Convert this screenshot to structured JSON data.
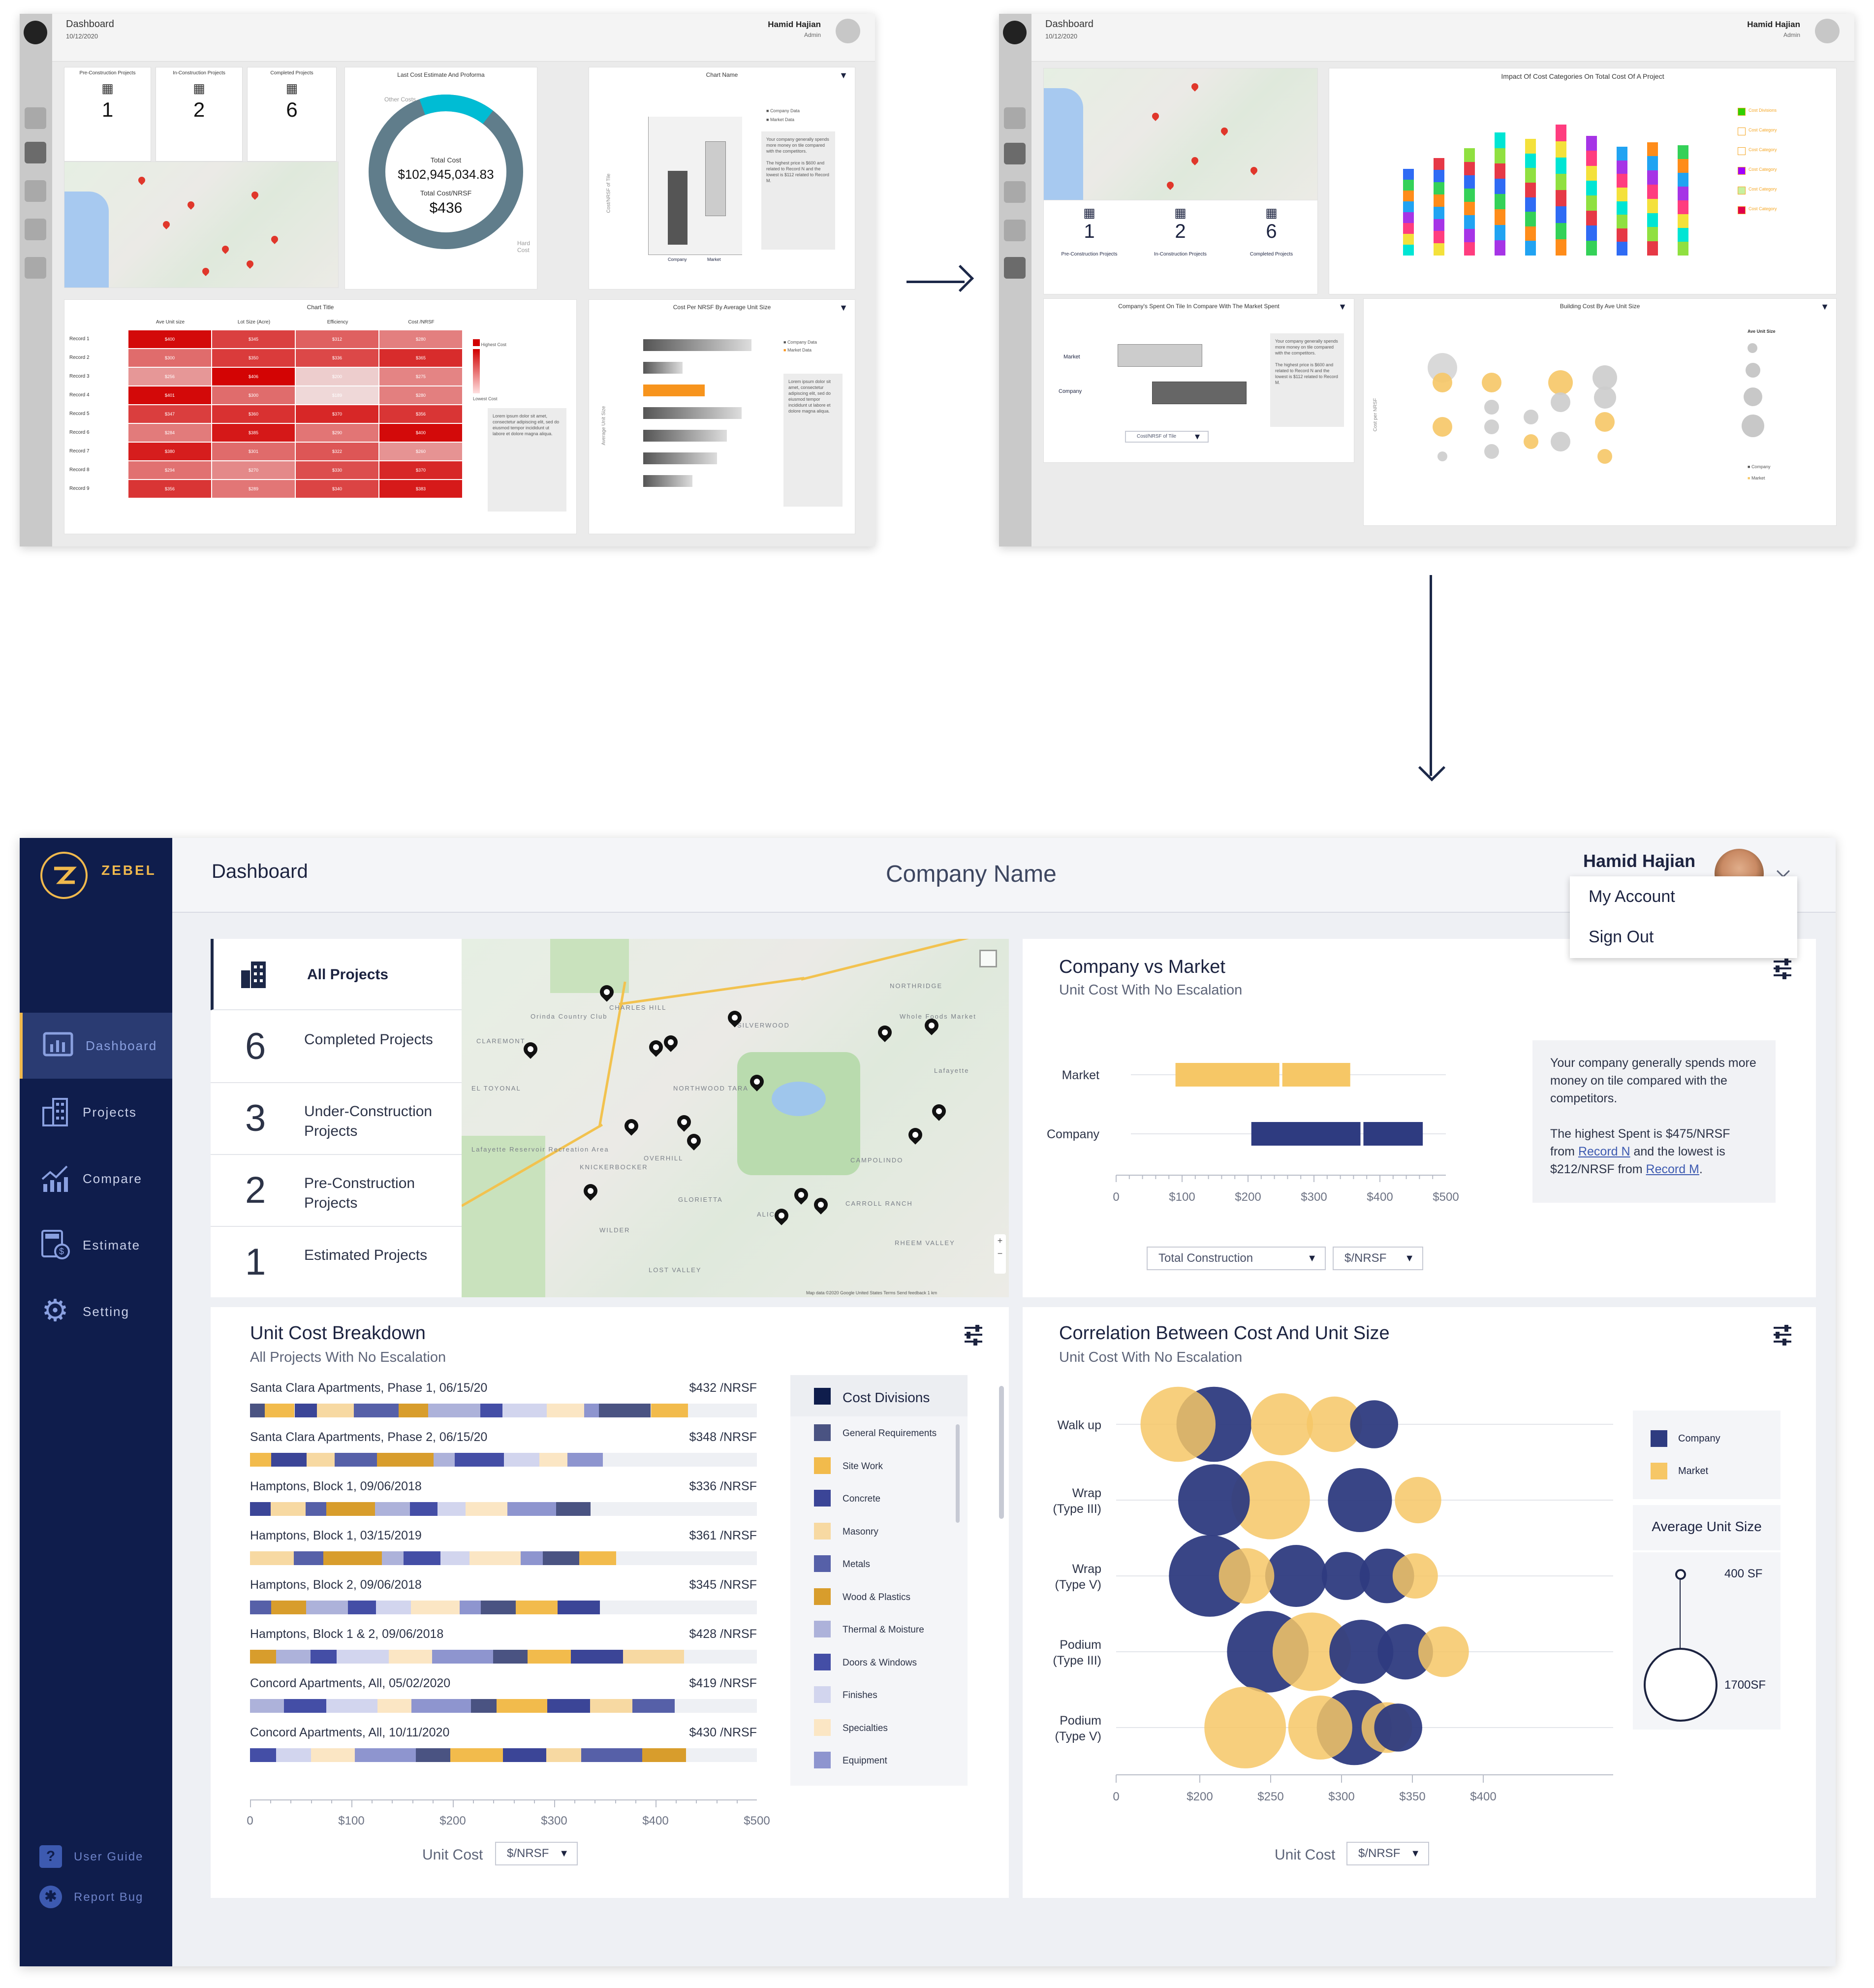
{
  "wireframe1": {
    "header": {
      "title": "Dashboard",
      "date": "10/12/2020",
      "user": "Hamid Hajian",
      "role": "Admin"
    },
    "stats": [
      {
        "label": "Pre-Construction Projects",
        "value": "1"
      },
      {
        "label": "In-Construction Projects",
        "value": "2"
      },
      {
        "label": "Completed Projects",
        "value": "6"
      }
    ],
    "donut": {
      "title": "Last Cost Estimate And Proforma",
      "other": "Other Costs",
      "hard": "Hard Cost",
      "total_label": "Total Cost",
      "total_value": "$102,945,034.83",
      "nrsf_label": "Total Cost/NRSF",
      "nrsf_value": "$436",
      "other_fraction": 0.16
    },
    "boxchart": {
      "title": "Chart Name",
      "legend_company": "Company Data",
      "legend_market": "Market Data",
      "x_company": "Company",
      "x_market": "Market",
      "ylabel": "Cost/NRSF of Tile",
      "note1": "Your company generally spends more money on tile compared with the competitors.",
      "note2": "The highest price is $600 and related to Record N and the lowest is $112 related to Record M."
    },
    "heatmap": {
      "title": "Chart Title",
      "columns": [
        "Ave Unit size",
        "Lot Size (Acre)",
        "Efficiency",
        "Cost /NRSF"
      ],
      "rows": [
        {
          "label": "Record 1",
          "values": [
            "$400",
            "$345",
            "$312",
            "$280"
          ]
        },
        {
          "label": "Record 2",
          "values": [
            "$300",
            "$350",
            "$336",
            "$365"
          ]
        },
        {
          "label": "Record 3",
          "values": [
            "$256",
            "$406",
            "$200",
            "$275"
          ]
        },
        {
          "label": "Record 4",
          "values": [
            "$401",
            "$300",
            "$189",
            "$280"
          ]
        },
        {
          "label": "Record 5",
          "values": [
            "$347",
            "$360",
            "$370",
            "$356"
          ]
        },
        {
          "label": "Record 6",
          "values": [
            "$284",
            "$385",
            "$290",
            "$400"
          ]
        },
        {
          "label": "Record 7",
          "values": [
            "$380",
            "$301",
            "$322",
            "$260"
          ]
        },
        {
          "label": "Record 8",
          "values": [
            "$294",
            "$270",
            "$330",
            "$370"
          ]
        },
        {
          "label": "Record 9",
          "values": [
            "$356",
            "$289",
            "$340",
            "$383"
          ]
        }
      ],
      "legend_high": "Highest Cost",
      "legend_low": "Lowest Cost",
      "note": "Lorem ipsum dolor sit amet, consectetur adipiscing elit, sed do eiusmod tempor incididunt ut labore et dolore magna aliqua."
    },
    "hbar": {
      "title": "Cost Per NRSF By Average Unit Size",
      "legend_company": "Company Data",
      "legend_market": "Market Data",
      "ylabel": "Average Unit Size",
      "note": "Lorem ipsum dolor sit amet, consectetur adipiscing elit, sed do eiusmod tempor incididunt ut labore et dolore magna aliqua."
    }
  },
  "wireframe2": {
    "header": {
      "title": "Dashboard",
      "date": "10/12/2020",
      "user": "Hamid Hajian",
      "role": "Admin"
    },
    "stats": [
      {
        "label": "Pre-Construction Projects",
        "value": "1"
      },
      {
        "label": "In-Construction Projects",
        "value": "2"
      },
      {
        "label": "Completed Projects",
        "value": "6"
      }
    ],
    "stacked": {
      "title": "Impact Of Cost Categories On Total Cost Of A Project",
      "legend": [
        "Cost Divisions",
        "Cost Category",
        "Cost Category",
        "Cost Category",
        "Cost Category",
        "Cost Category"
      ]
    },
    "compare": {
      "title": "Company's Spent On Tile In Compare With The Market Spent",
      "market": "Market",
      "company": "Company",
      "select": "Cost/NRSF of Tile",
      "note1": "Your company generally spends more money on tile compared with the competitors.",
      "note2": "The highest price is $600 and related to Record N and the lowest is $112 related to Record M."
    },
    "bubble": {
      "title": "Building Cost By Ave Unit Size",
      "legend_title": "Ave Unit Size",
      "company": "Company",
      "market": "Market",
      "ylabel": "Cost per NRSF"
    }
  },
  "app": {
    "brand": "ZEBEL",
    "nav": [
      {
        "label": "Dashboard",
        "icon": "dashboard-icon"
      },
      {
        "label": "Projects",
        "icon": "building-icon"
      },
      {
        "label": "Compare",
        "icon": "compare-icon"
      },
      {
        "label": "Estimate",
        "icon": "estimate-icon"
      },
      {
        "label": "Setting",
        "icon": "gear-icon"
      }
    ],
    "footer": {
      "guide": "User Guide",
      "bug": "Report Bug"
    },
    "topbar": {
      "page": "Dashboard",
      "company": "Company Name",
      "user": "Hamid Hajian"
    },
    "menu": {
      "account": "My Account",
      "signout": "Sign Out"
    },
    "projects": [
      {
        "count": "",
        "label": "All Projects"
      },
      {
        "count": "6",
        "label": "Completed Projects"
      },
      {
        "count": "3",
        "label": "Under-Construction Projects"
      },
      {
        "count": "2",
        "label": "Pre-Construction Projects"
      },
      {
        "count": "1",
        "label": "Estimated Projects"
      }
    ],
    "map": {
      "labels": [
        "CHARLES HILL",
        "CLAREMONT",
        "EL TOYONAL",
        "SILVERWOOD",
        "NORTHWOOD TARA",
        "KNICKERBOCKER",
        "OVERHILL",
        "GLORIETTA",
        "WILDER",
        "LOST VALLEY",
        "CAMPOLINDO",
        "CARROLL RANCH",
        "RHEEM VALLEY",
        "NORTHRIDGE",
        "ALICE",
        "Lafayette",
        "Whole Foods Market",
        "Orinda Country Club",
        "Lafayette Reservoir Recreation Area"
      ],
      "attribution": "Map data ©2020 Google   United States   Terms   Send feedback   1 km"
    },
    "company_vs_market": {
      "title": "Company vs Market",
      "subtitle": "Unit Cost With No Escalation",
      "note1": "Your company generally spends more money on tile compared with the competitors.",
      "note2_a": "The highest Spent is $475/NRSF from ",
      "note2_link1": "Record N",
      "note2_b": " and the lowest is $212/NRSF from ",
      "note2_link2": "Record M",
      "note2_c": ".",
      "select1": "Total Construction",
      "select2": "$/NRSF"
    },
    "unit_cost": {
      "title": "Unit Cost Breakdown",
      "subtitle": "All Projects With No Escalation",
      "rows": [
        {
          "name": "Santa Clara Apartments, Phase 1, 06/15/20",
          "value": "$432 /NRSF",
          "cost": 432
        },
        {
          "name": "Santa Clara Apartments, Phase 2, 06/15/20",
          "value": "$348 /NRSF",
          "cost": 348
        },
        {
          "name": "Hamptons, Block 1, 09/06/2018",
          "value": "$336 /NRSF",
          "cost": 336
        },
        {
          "name": "Hamptons, Block 1, 03/15/2019",
          "value": "$361 /NRSF",
          "cost": 361
        },
        {
          "name": "Hamptons, Block 2, 09/06/2018",
          "value": "$345 /NRSF",
          "cost": 345
        },
        {
          "name": "Hamptons, Block 1 & 2, 09/06/2018",
          "value": "$428 /NRSF",
          "cost": 428
        },
        {
          "name": "Concord Apartments, All, 05/02/2020",
          "value": "$419 /NRSF",
          "cost": 419
        },
        {
          "name": "Concord Apartments, All, 10/11/2020",
          "value": "$430 /NRSF",
          "cost": 430
        }
      ],
      "axis_label": "Unit Cost",
      "select": "$/NRSF",
      "legend_title": "Cost Divisions",
      "legend": [
        {
          "label": "General Requirements",
          "color": "#4a5382"
        },
        {
          "label": "Site Work",
          "color": "#f2bb4c"
        },
        {
          "label": "Concrete",
          "color": "#3b4597"
        },
        {
          "label": "Masonry",
          "color": "#f7d9a2"
        },
        {
          "label": "Metals",
          "color": "#5660a8"
        },
        {
          "label": "Wood & Plastics",
          "color": "#d89d2c"
        },
        {
          "label": "Thermal & Moisture",
          "color": "#adb2da"
        },
        {
          "label": "Doors & Windows",
          "color": "#444ea6"
        },
        {
          "label": "Finishes",
          "color": "#d2d5ee"
        },
        {
          "label": "Specialties",
          "color": "#fbe6c4"
        },
        {
          "label": "Equipment",
          "color": "#8e95cf"
        }
      ]
    },
    "correlation": {
      "title": "Correlation Between Cost And Unit Size",
      "subtitle": "Unit Cost With No Escalation",
      "axis_label": "Unit Cost",
      "select": "$/NRSF",
      "legend_company": "Company",
      "legend_market": "Market",
      "size_title": "Average Unit Size",
      "size_small": "400 SF",
      "size_large": "1700SF"
    }
  },
  "chart_data": [
    {
      "type": "bar",
      "title": "Company vs Market",
      "subtitle": "Unit Cost With No Escalation",
      "categories": [
        "Market",
        "Company"
      ],
      "xticks": [
        "0",
        "$100",
        "$200",
        "$300",
        "$400",
        "$500"
      ],
      "xlim": [
        0,
        500
      ],
      "series": [
        {
          "name": "Market",
          "q1": 90,
          "median": 252,
          "q3": 355
        },
        {
          "name": "Company",
          "q1": 205,
          "median": 375,
          "q3": 465
        }
      ],
      "colors": {
        "Market": "#f6c766",
        "Company": "#2e3b80"
      }
    },
    {
      "type": "bar",
      "title": "Unit Cost Breakdown",
      "subtitle": "All Projects With No Escalation",
      "xticks": [
        "0",
        "$100",
        "$200",
        "$300",
        "$400",
        "$500"
      ],
      "xlim": [
        0,
        500
      ],
      "xlabel": "Unit Cost",
      "categories": [
        "Santa Clara Apartments, Phase 1, 06/15/20",
        "Santa Clara Apartments, Phase 2, 06/15/20",
        "Hamptons, Block 1, 09/06/2018",
        "Hamptons, Block 1, 03/15/2019",
        "Hamptons, Block 2, 09/06/2018",
        "Hamptons, Block 1 & 2, 09/06/2018",
        "Concord Apartments, All, 05/02/2020",
        "Concord Apartments, All, 10/11/2020"
      ],
      "values": [
        432,
        348,
        336,
        361,
        345,
        428,
        419,
        430
      ]
    },
    {
      "type": "scatter",
      "title": "Correlation Between Cost And Unit Size",
      "subtitle": "Unit Cost With No Escalation",
      "xlabel": "Unit Cost",
      "xticks": [
        "0",
        "$200",
        "$250",
        "$300",
        "$350",
        "$400"
      ],
      "xlim": [
        150,
        400
      ],
      "categories": [
        "Walk up",
        "Wrap (Type III)",
        "Wrap (Type V)",
        "Podium (Type III)",
        "Podium (Type V)"
      ],
      "series": [
        {
          "name": "Company",
          "color": "#2e3b80",
          "points": [
            {
              "cat": 0,
              "x": 210,
              "size": 1100
            },
            {
              "cat": 0,
              "x": 323,
              "size": 450
            },
            {
              "cat": 1,
              "x": 210,
              "size": 1000
            },
            {
              "cat": 1,
              "x": 313,
              "size": 800
            },
            {
              "cat": 2,
              "x": 207,
              "size": 1300
            },
            {
              "cat": 2,
              "x": 268,
              "size": 750
            },
            {
              "cat": 2,
              "x": 332,
              "size": 580
            },
            {
              "cat": 2,
              "x": 303,
              "size": 450
            },
            {
              "cat": 3,
              "x": 248,
              "size": 1300
            },
            {
              "cat": 3,
              "x": 314,
              "size": 800
            },
            {
              "cat": 3,
              "x": 345,
              "size": 600
            },
            {
              "cat": 4,
              "x": 309,
              "size": 1100
            },
            {
              "cat": 4,
              "x": 340,
              "size": 450
            }
          ]
        },
        {
          "name": "Market",
          "color": "#f6c766",
          "points": [
            {
              "cat": 0,
              "x": 187,
              "size": 1100
            },
            {
              "cat": 0,
              "x": 258,
              "size": 750
            },
            {
              "cat": 0,
              "x": 295,
              "size": 600
            },
            {
              "cat": 1,
              "x": 250,
              "size": 1200
            },
            {
              "cat": 1,
              "x": 354,
              "size": 420
            },
            {
              "cat": 2,
              "x": 233,
              "size": 600
            },
            {
              "cat": 2,
              "x": 352,
              "size": 400
            },
            {
              "cat": 3,
              "x": 279,
              "size": 1200
            },
            {
              "cat": 3,
              "x": 372,
              "size": 500
            },
            {
              "cat": 4,
              "x": 232,
              "size": 1300
            },
            {
              "cat": 4,
              "x": 285,
              "size": 800
            },
            {
              "cat": 4,
              "x": 332,
              "size": 500
            }
          ]
        }
      ]
    }
  ]
}
